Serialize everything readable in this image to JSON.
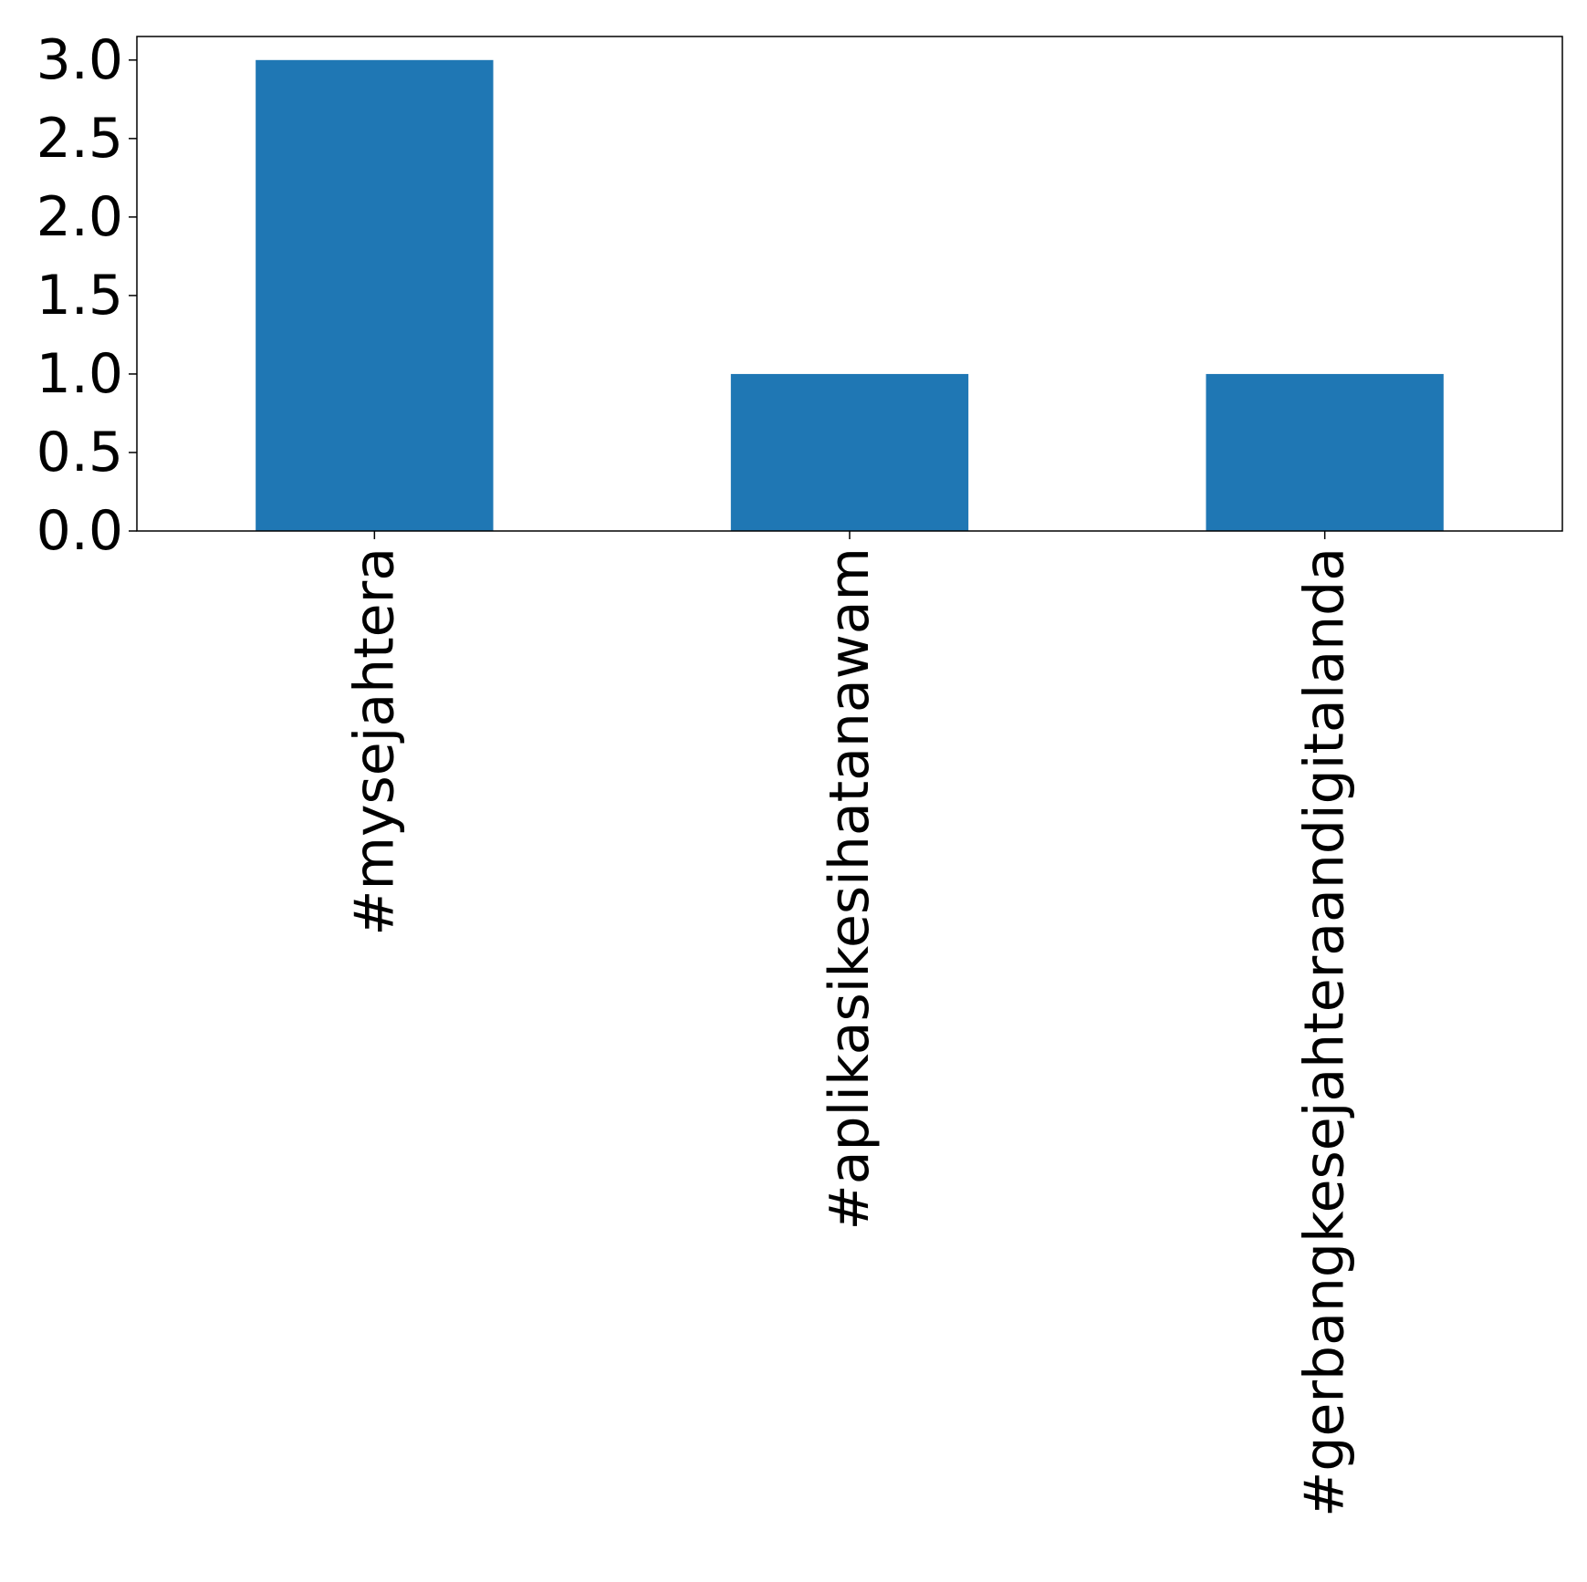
{
  "chart_data": {
    "type": "bar",
    "categories": [
      "#mysejahtera",
      "#aplikasikesihatanawam",
      "#gerbangkesejahteraandigitalanda"
    ],
    "values": [
      3,
      1,
      1
    ],
    "title": "",
    "xlabel": "",
    "ylabel": "",
    "ylim": [
      0,
      3.15
    ],
    "yticks": [
      0.0,
      0.5,
      1.0,
      1.5,
      2.0,
      2.5,
      3.0
    ],
    "ytick_labels": [
      "0.0",
      "0.5",
      "1.0",
      "1.5",
      "2.0",
      "2.5",
      "3.0"
    ],
    "grid": false,
    "legend": "none",
    "bar_color": "#1f77b4"
  }
}
